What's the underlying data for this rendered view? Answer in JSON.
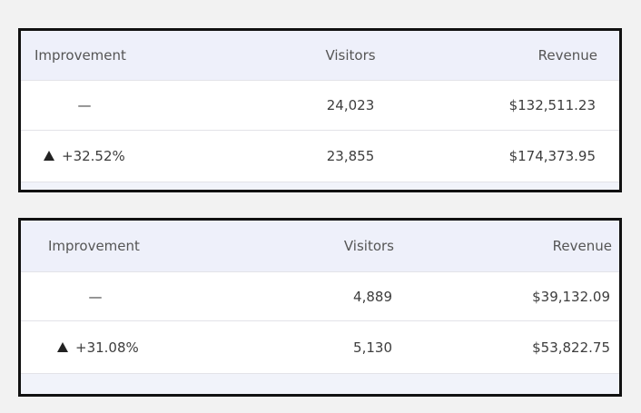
{
  "tables": [
    {
      "header": [
        "Improvement",
        "Visitors",
        "Revenue"
      ],
      "rows": [
        [
          "—",
          "24,023",
          "$132,511.23"
        ],
        [
          "+32.52%",
          "23,855",
          "$174,373.95"
        ]
      ]
    },
    {
      "header": [
        "Improvement",
        "Visitors",
        "Revenue"
      ],
      "rows": [
        [
          "—",
          "4,889",
          "$39,132.09"
        ],
        [
          "+31.08%",
          "5,130",
          "$53,822.75"
        ]
      ]
    }
  ]
}
